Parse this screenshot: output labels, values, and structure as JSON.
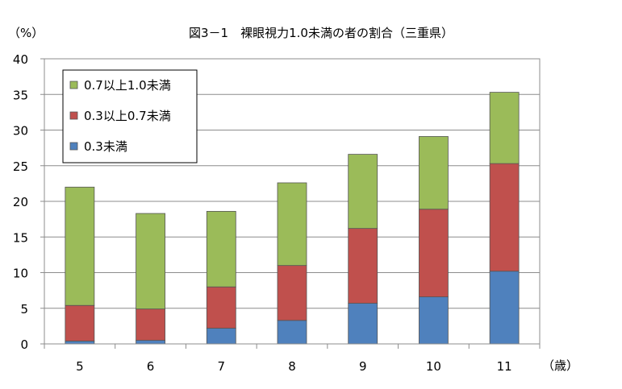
{
  "chart_data": {
    "type": "bar",
    "stacked": true,
    "title": "図3－1　裸眼視力1.0未満の者の割合（三重県）",
    "ylabel": "（%）",
    "xlabel": "（歳）",
    "ylim": [
      0,
      40
    ],
    "yticks": [
      0,
      5,
      10,
      15,
      20,
      25,
      30,
      35,
      40
    ],
    "grid": true,
    "legend_position": "top-left",
    "categories": [
      "5",
      "6",
      "7",
      "8",
      "9",
      "10",
      "11"
    ],
    "series": [
      {
        "name": "0.3未満",
        "color": "#4f81bd",
        "values": [
          0.4,
          0.5,
          2.2,
          3.3,
          5.7,
          6.6,
          10.2
        ]
      },
      {
        "name": "0.3以上0.7未満",
        "color": "#c0504d",
        "values": [
          5.0,
          4.4,
          5.8,
          7.7,
          10.5,
          12.3,
          15.1
        ]
      },
      {
        "name": "0.7以上1.0未満",
        "color": "#9bbb59",
        "values": [
          16.6,
          13.4,
          10.6,
          11.6,
          10.4,
          10.2,
          10.0
        ]
      }
    ]
  }
}
